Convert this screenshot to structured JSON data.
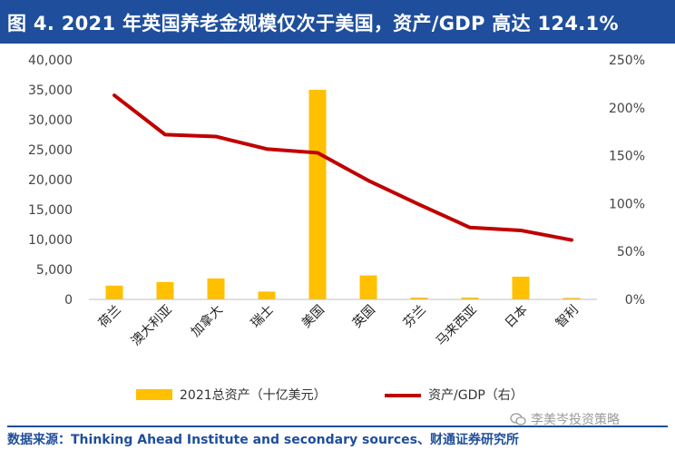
{
  "header": {
    "title": "图 4. 2021 年英国养老金规模仅次于美国，资产/GDP 高达 124.1%"
  },
  "footer": {
    "source": "数据来源：Thinking Ahead Institute and secondary sources、财通证券研究所",
    "watermark": "李美岑投资策略"
  },
  "colors": {
    "bar": "#FFC000",
    "line": "#C00000",
    "header_bg": "#1F4E9C"
  },
  "chart_data": {
    "type": "bar",
    "categories": [
      "荷兰",
      "澳大利亚",
      "加拿大",
      "瑞士",
      "美国",
      "英国",
      "芬兰",
      "马来西亚",
      "日本",
      "智利"
    ],
    "series": [
      {
        "name": "2021总资产（十亿美元）",
        "type": "bar",
        "axis": "left",
        "values": [
          2300,
          2900,
          3500,
          1300,
          35000,
          4000,
          300,
          300,
          3800,
          250
        ]
      },
      {
        "name": "资产/GDP（右）",
        "type": "line",
        "axis": "right",
        "values": [
          213,
          172,
          170,
          157,
          153,
          124,
          99,
          75,
          72,
          62
        ]
      }
    ],
    "y_left": {
      "range": [
        0,
        40000
      ],
      "ticks": [
        0,
        5000,
        10000,
        15000,
        20000,
        25000,
        30000,
        35000,
        40000
      ],
      "tick_labels": [
        "0",
        "5,000",
        "10,000",
        "15,000",
        "20,000",
        "25,000",
        "30,000",
        "35,000",
        "40,000"
      ]
    },
    "y_right": {
      "range": [
        0,
        250
      ],
      "ticks": [
        0,
        50,
        100,
        150,
        200,
        250
      ],
      "tick_labels": [
        "0%",
        "50%",
        "100%",
        "150%",
        "200%",
        "250%"
      ]
    },
    "grid": false,
    "legend_position": "bottom",
    "legend": [
      "2021总资产（十亿美元）",
      "资产/GDP（右）"
    ]
  }
}
